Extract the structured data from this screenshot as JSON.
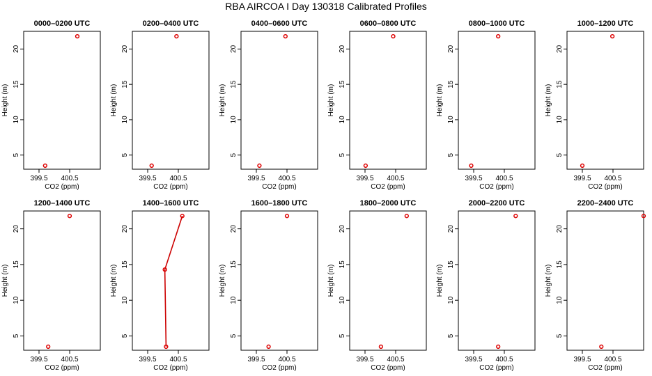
{
  "title": "RBA AIRCOA I  Day 130318  Calibrated Profiles",
  "chart_data": [
    {
      "type": "line",
      "title": "0000–0200 UTC",
      "xlabel": "CO2 (ppm)",
      "ylabel": "Height (m)",
      "xlim": [
        399.0,
        401.5
      ],
      "ylim": [
        3.0,
        22.5
      ],
      "xticks": [
        399.5,
        400.5
      ],
      "xtick_labels": [
        "399.5",
        "400.5"
      ],
      "yticks": [
        5,
        10,
        15,
        20
      ],
      "ytick_labels": [
        "5",
        "10",
        "15",
        "20"
      ],
      "points": [
        {
          "x": 399.7,
          "y": 3.5
        },
        {
          "x": 400.75,
          "y": 21.8
        }
      ],
      "connected": false
    },
    {
      "type": "line",
      "title": "0200–0400 UTC",
      "xlabel": "CO2 (ppm)",
      "ylabel": "Height (m)",
      "xlim": [
        399.0,
        401.5
      ],
      "ylim": [
        3.0,
        22.5
      ],
      "xticks": [
        399.5,
        400.5
      ],
      "xtick_labels": [
        "399.5",
        "400.5"
      ],
      "yticks": [
        5,
        10,
        15,
        20
      ],
      "ytick_labels": [
        "5",
        "10",
        "15",
        "20"
      ],
      "points": [
        {
          "x": 399.63,
          "y": 3.5
        },
        {
          "x": 400.44,
          "y": 21.8
        }
      ],
      "connected": false
    },
    {
      "type": "line",
      "title": "0400–0600 UTC",
      "xlabel": "CO2 (ppm)",
      "ylabel": "Height (m)",
      "xlim": [
        399.0,
        401.5
      ],
      "ylim": [
        3.0,
        22.5
      ],
      "xticks": [
        399.5,
        400.5
      ],
      "xtick_labels": [
        "399.5",
        "400.5"
      ],
      "yticks": [
        5,
        10,
        15,
        20
      ],
      "ytick_labels": [
        "5",
        "10",
        "15",
        "20"
      ],
      "points": [
        {
          "x": 399.6,
          "y": 3.5
        },
        {
          "x": 400.45,
          "y": 21.8
        }
      ],
      "connected": false
    },
    {
      "type": "line",
      "title": "0600–0800 UTC",
      "xlabel": "CO2 (ppm)",
      "ylabel": "Height (m)",
      "xlim": [
        399.0,
        401.5
      ],
      "ylim": [
        3.0,
        22.5
      ],
      "xticks": [
        399.5,
        400.5
      ],
      "xtick_labels": [
        "399.5",
        "400.5"
      ],
      "yticks": [
        5,
        10,
        15,
        20
      ],
      "ytick_labels": [
        "5",
        "10",
        "15",
        "20"
      ],
      "points": [
        {
          "x": 399.52,
          "y": 3.5
        },
        {
          "x": 400.42,
          "y": 21.8
        }
      ],
      "connected": false
    },
    {
      "type": "line",
      "title": "0800–1000 UTC",
      "xlabel": "CO2 (ppm)",
      "ylabel": "Height (m)",
      "xlim": [
        399.0,
        401.5
      ],
      "ylim": [
        3.0,
        22.5
      ],
      "xticks": [
        399.5,
        400.5
      ],
      "xtick_labels": [
        "399.5",
        "400.5"
      ],
      "yticks": [
        5,
        10,
        15,
        20
      ],
      "ytick_labels": [
        "5",
        "10",
        "15",
        "20"
      ],
      "points": [
        {
          "x": 399.42,
          "y": 3.5
        },
        {
          "x": 400.3,
          "y": 21.8
        }
      ],
      "connected": false
    },
    {
      "type": "line",
      "title": "1000–1200 UTC",
      "xlabel": "CO2 (ppm)",
      "ylabel": "Height (m)",
      "xlim": [
        399.0,
        401.5
      ],
      "ylim": [
        3.0,
        22.5
      ],
      "xticks": [
        399.5,
        400.5
      ],
      "xtick_labels": [
        "399.5",
        "400.5"
      ],
      "yticks": [
        5,
        10,
        15,
        20
      ],
      "ytick_labels": [
        "5",
        "10",
        "15",
        "20"
      ],
      "points": [
        {
          "x": 399.5,
          "y": 3.5
        },
        {
          "x": 400.48,
          "y": 21.8
        }
      ],
      "connected": false
    },
    {
      "type": "line",
      "title": "1200–1400 UTC",
      "xlabel": "CO2 (ppm)",
      "ylabel": "Height (m)",
      "xlim": [
        399.0,
        401.5
      ],
      "ylim": [
        3.0,
        22.5
      ],
      "xticks": [
        399.5,
        400.5
      ],
      "xtick_labels": [
        "399.5",
        "400.5"
      ],
      "yticks": [
        5,
        10,
        15,
        20
      ],
      "ytick_labels": [
        "5",
        "10",
        "15",
        "20"
      ],
      "points": [
        {
          "x": 399.8,
          "y": 3.5
        },
        {
          "x": 400.5,
          "y": 21.8
        }
      ],
      "connected": false
    },
    {
      "type": "line",
      "title": "1400–1600 UTC",
      "xlabel": "CO2 (ppm)",
      "ylabel": "Height (m)",
      "xlim": [
        399.0,
        401.5
      ],
      "ylim": [
        3.0,
        22.5
      ],
      "xticks": [
        399.5,
        400.5
      ],
      "xtick_labels": [
        "399.5",
        "400.5"
      ],
      "yticks": [
        5,
        10,
        15,
        20
      ],
      "ytick_labels": [
        "5",
        "10",
        "15",
        "20"
      ],
      "points": [
        {
          "x": 400.1,
          "y": 3.5
        },
        {
          "x": 400.06,
          "y": 14.3
        },
        {
          "x": 400.63,
          "y": 21.8
        }
      ],
      "connected": true
    },
    {
      "type": "line",
      "title": "1600–1800 UTC",
      "xlabel": "CO2 (ppm)",
      "ylabel": "Height (m)",
      "xlim": [
        399.0,
        401.5
      ],
      "ylim": [
        3.0,
        22.5
      ],
      "xticks": [
        399.5,
        400.5
      ],
      "xtick_labels": [
        "399.5",
        "400.5"
      ],
      "yticks": [
        5,
        10,
        15,
        20
      ],
      "ytick_labels": [
        "5",
        "10",
        "15",
        "20"
      ],
      "points": [
        {
          "x": 399.9,
          "y": 3.5
        },
        {
          "x": 400.5,
          "y": 21.8
        }
      ],
      "connected": false
    },
    {
      "type": "line",
      "title": "1800–2000 UTC",
      "xlabel": "CO2 (ppm)",
      "ylabel": "Height (m)",
      "xlim": [
        399.0,
        401.5
      ],
      "ylim": [
        3.0,
        22.5
      ],
      "xticks": [
        399.5,
        400.5
      ],
      "xtick_labels": [
        "399.5",
        "400.5"
      ],
      "yticks": [
        5,
        10,
        15,
        20
      ],
      "ytick_labels": [
        "5",
        "10",
        "15",
        "20"
      ],
      "points": [
        {
          "x": 400.02,
          "y": 3.5
        },
        {
          "x": 400.86,
          "y": 21.8
        }
      ],
      "connected": false
    },
    {
      "type": "line",
      "title": "2000–2200 UTC",
      "xlabel": "CO2 (ppm)",
      "ylabel": "Height (m)",
      "xlim": [
        399.0,
        401.5
      ],
      "ylim": [
        3.0,
        22.5
      ],
      "xticks": [
        399.5,
        400.5
      ],
      "xtick_labels": [
        "399.5",
        "400.5"
      ],
      "yticks": [
        5,
        10,
        15,
        20
      ],
      "ytick_labels": [
        "5",
        "10",
        "15",
        "20"
      ],
      "points": [
        {
          "x": 400.3,
          "y": 3.5
        },
        {
          "x": 400.87,
          "y": 21.8
        }
      ],
      "connected": false
    },
    {
      "type": "line",
      "title": "2200–2400 UTC",
      "xlabel": "CO2 (ppm)",
      "ylabel": "Height (m)",
      "xlim": [
        399.0,
        401.5
      ],
      "ylim": [
        3.0,
        22.5
      ],
      "xticks": [
        399.5,
        400.5
      ],
      "xtick_labels": [
        "399.5",
        "400.5"
      ],
      "yticks": [
        5,
        10,
        15,
        20
      ],
      "ytick_labels": [
        "5",
        "10",
        "15",
        "20"
      ],
      "points": [
        {
          "x": 400.12,
          "y": 3.5
        },
        {
          "x": 401.5,
          "y": 21.8
        }
      ],
      "connected": false
    }
  ],
  "colors": {
    "marker": "#dd0000",
    "line": "#cc0000",
    "axis": "#000000",
    "background": "#ffffff"
  }
}
